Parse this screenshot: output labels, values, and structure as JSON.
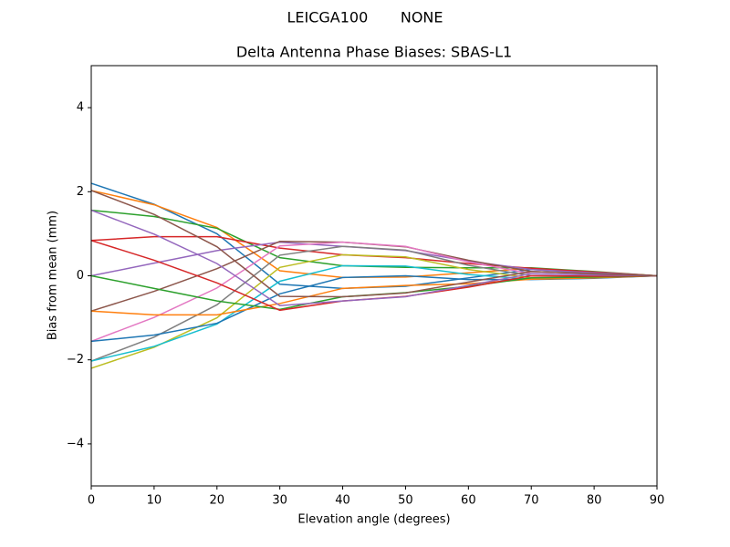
{
  "chart_data": {
    "type": "line",
    "suptitle": "LEICGA100       NONE",
    "title": "Delta Antenna Phase Biases: SBAS-L1",
    "xlabel": "Elevation angle (degrees)",
    "ylabel": "Bias from mean (mm)",
    "x": [
      0,
      10,
      20,
      30,
      40,
      50,
      60,
      70,
      80,
      90
    ],
    "xlim": [
      0,
      90
    ],
    "xticks": [
      0,
      10,
      20,
      30,
      40,
      50,
      60,
      70,
      80,
      90
    ],
    "ylim": [
      -5,
      5
    ],
    "yticks": [
      {
        "value": -4,
        "label": "−4"
      },
      {
        "value": -2,
        "label": "−2"
      },
      0,
      2,
      4
    ],
    "grid": false,
    "series": [
      {
        "color": "#1f77b4",
        "values": [
          2.2,
          1.7,
          1.0,
          -0.2,
          -0.3,
          -0.25,
          -0.05,
          0.15,
          0.07,
          0
        ]
      },
      {
        "color": "#ff7f0e",
        "values": [
          2.03,
          1.69,
          1.15,
          0.12,
          -0.04,
          -0.03,
          0.07,
          0.18,
          0.09,
          0
        ]
      },
      {
        "color": "#2ca02c",
        "values": [
          1.56,
          1.41,
          1.13,
          0.43,
          0.24,
          0.2,
          0.19,
          0.19,
          0.1,
          0
        ]
      },
      {
        "color": "#d62728",
        "values": [
          0.84,
          0.93,
          0.93,
          0.66,
          0.5,
          0.43,
          0.29,
          0.18,
          0.09,
          0
        ]
      },
      {
        "color": "#9467bd",
        "values": [
          0,
          0.3,
          0.6,
          0.8,
          0.7,
          0.6,
          0.35,
          0.15,
          0.07,
          0
        ]
      },
      {
        "color": "#8c564b",
        "values": [
          -0.84,
          -0.37,
          0.17,
          0.82,
          0.8,
          0.69,
          0.37,
          0.1,
          0.05,
          0
        ]
      },
      {
        "color": "#e377c2",
        "values": [
          -1.56,
          -0.99,
          -0.29,
          0.71,
          0.8,
          0.7,
          0.33,
          0.05,
          0.02,
          0
        ]
      },
      {
        "color": "#7f7f7f",
        "values": [
          -2.03,
          -1.46,
          -0.69,
          0.49,
          0.7,
          0.61,
          0.25,
          0.0,
          -0.01,
          0
        ]
      },
      {
        "color": "#bcbd22",
        "values": [
          -2.2,
          -1.7,
          -1.0,
          0.2,
          0.5,
          0.45,
          0.15,
          -0.05,
          -0.03,
          0
        ]
      },
      {
        "color": "#17becf",
        "values": [
          -2.03,
          -1.68,
          -1.15,
          -0.13,
          0.24,
          0.23,
          0.03,
          -0.08,
          -0.05,
          0
        ]
      },
      {
        "color": "#1f77b4",
        "values": [
          -1.56,
          -1.41,
          -1.13,
          -0.43,
          -0.04,
          0.0,
          -0.09,
          -0.09,
          -0.06,
          0
        ]
      },
      {
        "color": "#ff7f0e",
        "values": [
          -0.84,
          -0.93,
          -0.93,
          -0.66,
          -0.3,
          -0.23,
          -0.19,
          -0.08,
          -0.05,
          0
        ]
      },
      {
        "color": "#2ca02c",
        "values": [
          0,
          -0.3,
          -0.6,
          -0.8,
          -0.5,
          -0.4,
          -0.25,
          -0.05,
          -0.03,
          0
        ]
      },
      {
        "color": "#d62728",
        "values": [
          0.84,
          0.37,
          -0.17,
          -0.82,
          -0.6,
          -0.49,
          -0.27,
          0.0,
          -0.01,
          0
        ]
      },
      {
        "color": "#9467bd",
        "values": [
          1.56,
          0.99,
          0.29,
          -0.71,
          -0.6,
          -0.5,
          -0.23,
          0.05,
          0.02,
          0
        ]
      },
      {
        "color": "#8c564b",
        "values": [
          2.03,
          1.46,
          0.69,
          -0.49,
          -0.5,
          -0.41,
          -0.15,
          0.1,
          0.05,
          0
        ]
      }
    ]
  }
}
